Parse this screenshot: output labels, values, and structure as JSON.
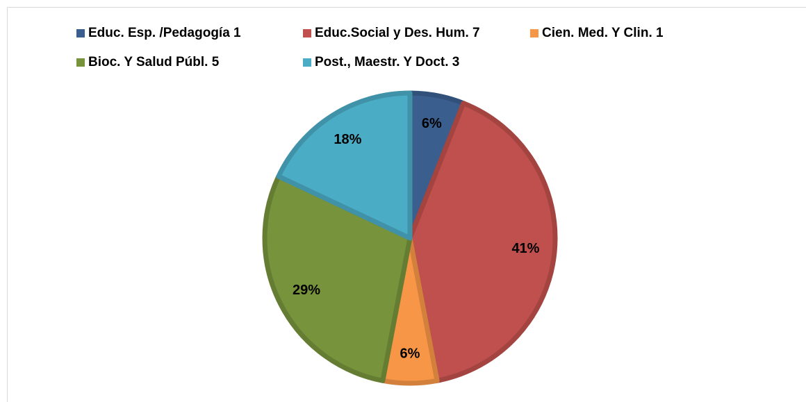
{
  "chart_data": {
    "type": "pie",
    "categories": [
      "Educ. Esp. /Pedagogía 1",
      "Educ.Social y Des. Hum. 7",
      "Cien. Med. Y Clin. 1",
      "Bioc. Y Salud Públ. 5",
      "Post., Maestr. Y Doct. 3"
    ],
    "values": [
      6,
      41,
      6,
      29,
      18
    ],
    "value_labels": [
      "6%",
      "41%",
      "6%",
      "29%",
      "18%"
    ],
    "colors": [
      "#3a5f8f",
      "#c0504d",
      "#f79646",
      "#77933c",
      "#4bacc6"
    ],
    "legend": "top"
  }
}
